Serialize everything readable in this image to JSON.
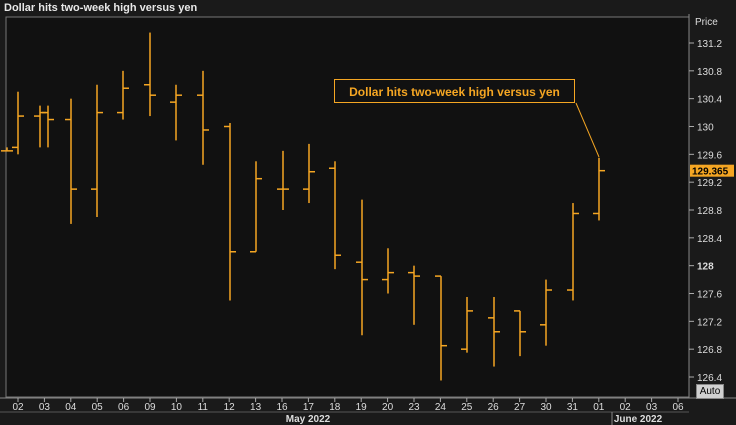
{
  "title": "Dollar hits two-week high versus yen",
  "annotation": "Dollar hits two-week high versus yen",
  "auto_label": "Auto",
  "chart_data": {
    "type": "ohlc",
    "title": "Dollar hits two-week high versus yen",
    "ylabel": "Price",
    "ylim": [
      126.2,
      131.4
    ],
    "y_ticks": [
      126.4,
      126.8,
      127.2,
      127.6,
      128,
      128.4,
      128.8,
      129.2,
      129.6,
      130,
      130.4,
      130.8,
      131.2
    ],
    "y_bold_ticks": [
      128
    ],
    "last_price": "129.365",
    "x_ticks": [
      "02",
      "03",
      "04",
      "05",
      "06",
      "09",
      "10",
      "11",
      "12",
      "13",
      "16",
      "17",
      "18",
      "19",
      "20",
      "23",
      "24",
      "25",
      "26",
      "27",
      "30",
      "31",
      "01",
      "02",
      "03",
      "06"
    ],
    "x_groups": [
      {
        "label": "May 2022"
      },
      {
        "label": "June 2022"
      }
    ],
    "bar_color": "#f5a623",
    "series": [
      {
        "x": "29 Apr",
        "open": 129.65,
        "high": 129.7,
        "low": 129.65,
        "close": 129.65
      },
      {
        "x": "02",
        "open": 129.7,
        "high": 130.5,
        "low": 129.6,
        "close": 130.15
      },
      {
        "x": "03",
        "open": 130.15,
        "high": 130.3,
        "low": 129.7,
        "close": 130.2
      },
      {
        "x": "03b",
        "open": 130.2,
        "high": 130.3,
        "low": 129.7,
        "close": 130.1
      },
      {
        "x": "04",
        "open": 130.1,
        "high": 130.4,
        "low": 128.6,
        "close": 129.1
      },
      {
        "x": "05",
        "open": 129.1,
        "high": 130.6,
        "low": 128.7,
        "close": 130.2
      },
      {
        "x": "06",
        "open": 130.2,
        "high": 130.8,
        "low": 130.1,
        "close": 130.55
      },
      {
        "x": "09",
        "open": 130.6,
        "high": 131.35,
        "low": 130.15,
        "close": 130.45
      },
      {
        "x": "10",
        "open": 130.35,
        "high": 130.6,
        "low": 129.8,
        "close": 130.45
      },
      {
        "x": "11",
        "open": 130.45,
        "high": 130.8,
        "low": 129.45,
        "close": 129.95
      },
      {
        "x": "12",
        "open": 130.0,
        "high": 130.05,
        "low": 127.5,
        "close": 128.2
      },
      {
        "x": "13",
        "open": 128.2,
        "high": 129.5,
        "low": 128.2,
        "close": 129.25
      },
      {
        "x": "16",
        "open": 129.1,
        "high": 129.65,
        "low": 128.8,
        "close": 129.1
      },
      {
        "x": "17",
        "open": 129.1,
        "high": 129.75,
        "low": 128.9,
        "close": 129.35
      },
      {
        "x": "18",
        "open": 129.4,
        "high": 129.5,
        "low": 127.95,
        "close": 128.15
      },
      {
        "x": "19",
        "open": 128.05,
        "high": 128.95,
        "low": 127.0,
        "close": 127.8
      },
      {
        "x": "20",
        "open": 127.8,
        "high": 128.25,
        "low": 127.6,
        "close": 127.9
      },
      {
        "x": "23",
        "open": 127.9,
        "high": 128.0,
        "low": 127.15,
        "close": 127.85
      },
      {
        "x": "24",
        "open": 127.85,
        "high": 127.85,
        "low": 126.35,
        "close": 126.85
      },
      {
        "x": "25",
        "open": 126.8,
        "high": 127.55,
        "low": 126.75,
        "close": 127.35
      },
      {
        "x": "26",
        "open": 127.25,
        "high": 127.55,
        "low": 126.55,
        "close": 127.05
      },
      {
        "x": "27",
        "open": 127.35,
        "high": 127.35,
        "low": 126.7,
        "close": 127.05
      },
      {
        "x": "30",
        "open": 127.15,
        "high": 127.8,
        "low": 126.85,
        "close": 127.65
      },
      {
        "x": "31",
        "open": 127.65,
        "high": 128.9,
        "low": 127.5,
        "close": 128.75
      },
      {
        "x": "01",
        "open": 128.75,
        "high": 129.55,
        "low": 128.65,
        "close": 129.365
      }
    ]
  }
}
